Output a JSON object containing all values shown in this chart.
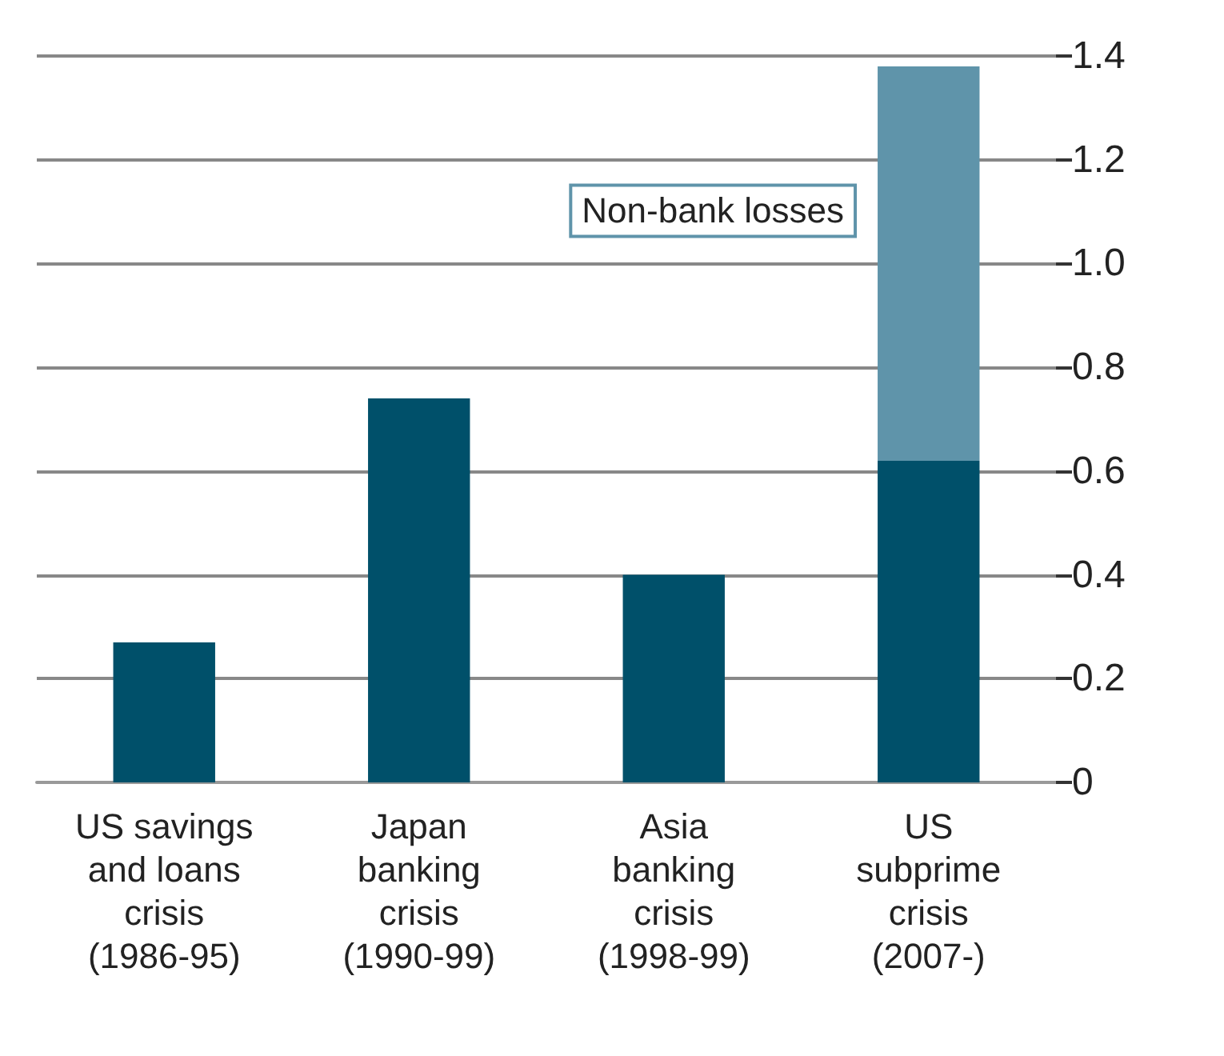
{
  "chart_data": {
    "type": "bar",
    "stacked": true,
    "categories": [
      "US savings\nand loans\ncrisis\n(1986-95)",
      "Japan\nbanking\ncrisis\n(1990-99)",
      "Asia\nbanking\ncrisis\n(1998-99)",
      "US\nsubprime\ncrisis\n(2007-)"
    ],
    "series": [
      {
        "color": "#00506a",
        "values": [
          0.27,
          0.74,
          0.4,
          0.62
        ]
      },
      {
        "name": "Non-bank losses",
        "color": "#5f94aa",
        "values": [
          null,
          null,
          null,
          0.76
        ]
      }
    ],
    "ylim": [
      0,
      1.4
    ],
    "yticks": [
      0,
      0.2,
      0.4,
      0.6,
      0.8,
      {
        "value": 1,
        "label": "1.0"
      },
      1.2,
      1.4
    ],
    "grid": "y",
    "legend": false
  }
}
